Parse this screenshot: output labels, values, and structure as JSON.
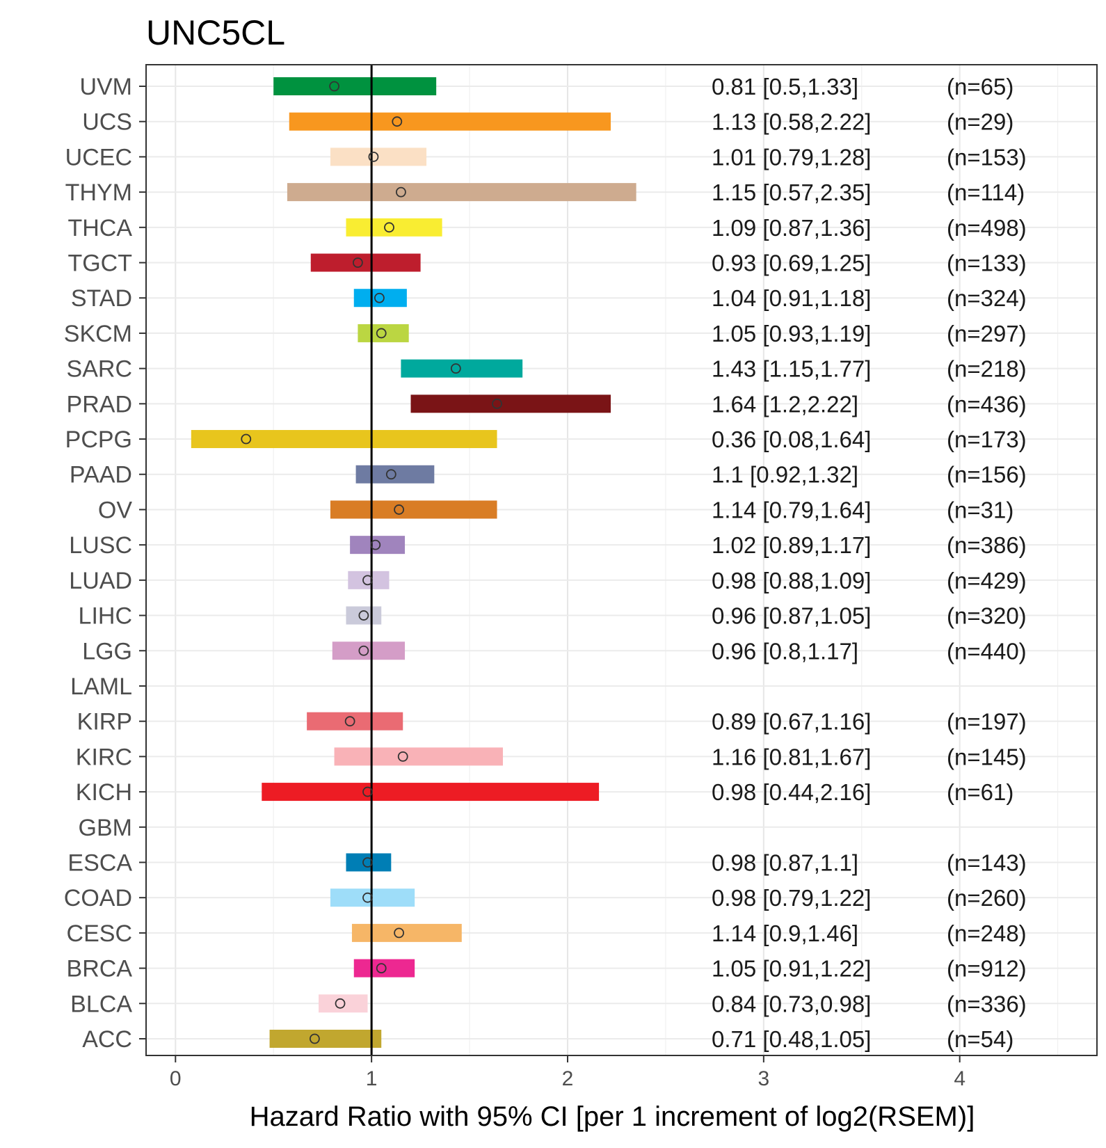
{
  "chart_data": {
    "type": "forest",
    "title": "UNC5CL",
    "xlabel": "Hazard Ratio with 95% CI [per 1 increment of log2(RSEM)]",
    "xlim": [
      -0.15,
      4.7
    ],
    "x_ticks": [
      0,
      1,
      2,
      3,
      4
    ],
    "reference_line": 1,
    "grid": true,
    "rows": [
      {
        "label": "UVM",
        "hr": 0.81,
        "lo": 0.5,
        "hi": 1.33,
        "ci_text": "0.81 [0.5,1.33]",
        "n_text": "(n=65)",
        "color": "#00923F"
      },
      {
        "label": "UCS",
        "hr": 1.13,
        "lo": 0.58,
        "hi": 2.22,
        "ci_text": "1.13 [0.58,2.22]",
        "n_text": "(n=29)",
        "color": "#F8971F"
      },
      {
        "label": "UCEC",
        "hr": 1.01,
        "lo": 0.79,
        "hi": 1.28,
        "ci_text": "1.01 [0.79,1.28]",
        "n_text": "(n=153)",
        "color": "#FBE0C5"
      },
      {
        "label": "THYM",
        "hr": 1.15,
        "lo": 0.57,
        "hi": 2.35,
        "ci_text": "1.15 [0.57,2.35]",
        "n_text": "(n=114)",
        "color": "#CEAB8F"
      },
      {
        "label": "THCA",
        "hr": 1.09,
        "lo": 0.87,
        "hi": 1.36,
        "ci_text": "1.09 [0.87,1.36]",
        "n_text": "(n=498)",
        "color": "#F9ED32"
      },
      {
        "label": "TGCT",
        "hr": 0.93,
        "lo": 0.69,
        "hi": 1.25,
        "ci_text": "0.93 [0.69,1.25]",
        "n_text": "(n=133)",
        "color": "#BE1E2D"
      },
      {
        "label": "STAD",
        "hr": 1.04,
        "lo": 0.91,
        "hi": 1.18,
        "ci_text": "1.04 [0.91,1.18]",
        "n_text": "(n=324)",
        "color": "#00AEEF"
      },
      {
        "label": "SKCM",
        "hr": 1.05,
        "lo": 0.93,
        "hi": 1.19,
        "ci_text": "1.05 [0.93,1.19]",
        "n_text": "(n=297)",
        "color": "#BBD642"
      },
      {
        "label": "SARC",
        "hr": 1.43,
        "lo": 1.15,
        "hi": 1.77,
        "ci_text": "1.43 [1.15,1.77]",
        "n_text": "(n=218)",
        "color": "#00A99D"
      },
      {
        "label": "PRAD",
        "hr": 1.64,
        "lo": 1.2,
        "hi": 2.22,
        "ci_text": "1.64 [1.2,2.22]",
        "n_text": "(n=436)",
        "color": "#7A1416"
      },
      {
        "label": "PCPG",
        "hr": 0.36,
        "lo": 0.08,
        "hi": 1.64,
        "ci_text": "0.36 [0.08,1.64]",
        "n_text": "(n=173)",
        "color": "#E8C51D"
      },
      {
        "label": "PAAD",
        "hr": 1.1,
        "lo": 0.92,
        "hi": 1.32,
        "ci_text": "1.1 [0.92,1.32]",
        "n_text": "(n=156)",
        "color": "#6E7BA2"
      },
      {
        "label": "OV",
        "hr": 1.14,
        "lo": 0.79,
        "hi": 1.64,
        "ci_text": "1.14 [0.79,1.64]",
        "n_text": "(n=31)",
        "color": "#D97D25"
      },
      {
        "label": "LUSC",
        "hr": 1.02,
        "lo": 0.89,
        "hi": 1.17,
        "ci_text": "1.02 [0.89,1.17]",
        "n_text": "(n=386)",
        "color": "#A084BD"
      },
      {
        "label": "LUAD",
        "hr": 0.98,
        "lo": 0.88,
        "hi": 1.09,
        "ci_text": "0.98 [0.88,1.09]",
        "n_text": "(n=429)",
        "color": "#D3C3E0"
      },
      {
        "label": "LIHC",
        "hr": 0.96,
        "lo": 0.87,
        "hi": 1.05,
        "ci_text": "0.96 [0.87,1.05]",
        "n_text": "(n=320)",
        "color": "#CACADA"
      },
      {
        "label": "LGG",
        "hr": 0.96,
        "lo": 0.8,
        "hi": 1.17,
        "ci_text": "0.96 [0.8,1.17]",
        "n_text": "(n=440)",
        "color": "#D49DC7"
      },
      {
        "label": "LAML",
        "hr": null,
        "lo": null,
        "hi": null,
        "ci_text": "",
        "n_text": "",
        "color": "#754C29"
      },
      {
        "label": "KIRP",
        "hr": 0.89,
        "lo": 0.67,
        "hi": 1.16,
        "ci_text": "0.89 [0.67,1.16]",
        "n_text": "(n=197)",
        "color": "#EA6B73"
      },
      {
        "label": "KIRC",
        "hr": 1.16,
        "lo": 0.81,
        "hi": 1.67,
        "ci_text": "1.16 [0.81,1.67]",
        "n_text": "(n=145)",
        "color": "#F9B2B7"
      },
      {
        "label": "KICH",
        "hr": 0.98,
        "lo": 0.44,
        "hi": 2.16,
        "ci_text": "0.98 [0.44,2.16]",
        "n_text": "(n=61)",
        "color": "#ED1C24"
      },
      {
        "label": "GBM",
        "hr": null,
        "lo": null,
        "hi": null,
        "ci_text": "",
        "n_text": "",
        "color": "#B2509E"
      },
      {
        "label": "ESCA",
        "hr": 0.98,
        "lo": 0.87,
        "hi": 1.1,
        "ci_text": "0.98 [0.87,1.1]",
        "n_text": "(n=143)",
        "color": "#007EB5"
      },
      {
        "label": "COAD",
        "hr": 0.98,
        "lo": 0.79,
        "hi": 1.22,
        "ci_text": "0.98 [0.79,1.22]",
        "n_text": "(n=260)",
        "color": "#9EDDF9"
      },
      {
        "label": "CESC",
        "hr": 1.14,
        "lo": 0.9,
        "hi": 1.46,
        "ci_text": "1.14 [0.9,1.46]",
        "n_text": "(n=248)",
        "color": "#F6B667"
      },
      {
        "label": "BRCA",
        "hr": 1.05,
        "lo": 0.91,
        "hi": 1.22,
        "ci_text": "1.05 [0.91,1.22]",
        "n_text": "(n=912)",
        "color": "#ED2891"
      },
      {
        "label": "BLCA",
        "hr": 0.84,
        "lo": 0.73,
        "hi": 0.98,
        "ci_text": "0.84 [0.73,0.98]",
        "n_text": "(n=336)",
        "color": "#FAD2D9"
      },
      {
        "label": "ACC",
        "hr": 0.71,
        "lo": 0.48,
        "hi": 1.05,
        "ci_text": "0.71 [0.48,1.05]",
        "n_text": "(n=54)",
        "color": "#C1A72F"
      }
    ]
  }
}
